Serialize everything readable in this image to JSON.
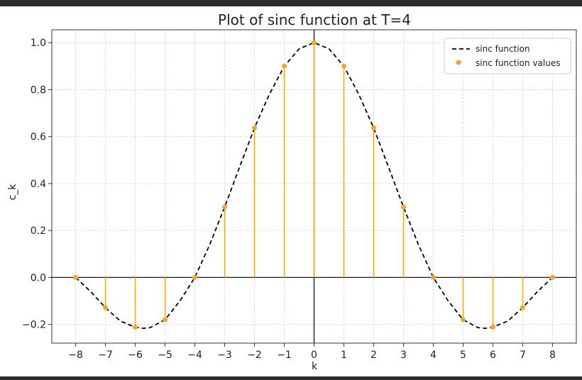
{
  "chart_data": {
    "type": "line",
    "title": "Plot of sinc function at T=4",
    "xlabel": "k",
    "ylabel": "c_k",
    "xlim": [
      -8.8,
      8.8
    ],
    "ylim": [
      -0.28,
      1.055
    ],
    "xticks": [
      -8,
      -7,
      -6,
      -5,
      -4,
      -3,
      -2,
      -1,
      0,
      1,
      2,
      3,
      4,
      5,
      6,
      7,
      8
    ],
    "xtick_labels": [
      "−8",
      "−7",
      "−6",
      "−5",
      "−4",
      "−3",
      "−2",
      "−1",
      "0",
      "1",
      "2",
      "3",
      "4",
      "5",
      "6",
      "7",
      "8"
    ],
    "yticks": [
      -0.2,
      0.0,
      0.2,
      0.4,
      0.6,
      0.8,
      1.0
    ],
    "ytick_labels": [
      "−0.2",
      "0.0",
      "0.2",
      "0.4",
      "0.6",
      "0.8",
      "1.0"
    ],
    "grid": true,
    "legend_position": "top-right",
    "series": [
      {
        "name": "sinc function",
        "kind": "line",
        "style": "dashed",
        "color": "#000000",
        "x": [
          -8.0,
          -7.5,
          -7.0,
          -6.5,
          -6.0,
          -5.75,
          -5.5,
          -5.0,
          -4.5,
          -4.0,
          -3.5,
          -3.0,
          -2.5,
          -2.0,
          -1.5,
          -1.0,
          -0.5,
          0.0,
          0.5,
          1.0,
          1.5,
          2.0,
          2.5,
          3.0,
          3.5,
          4.0,
          4.5,
          5.0,
          5.5,
          5.75,
          6.0,
          6.5,
          7.0,
          7.5,
          8.0
        ],
        "y": [
          0.0,
          -0.06,
          -0.129,
          -0.186,
          -0.212,
          -0.217,
          -0.214,
          -0.18,
          -0.1,
          0.0,
          0.14,
          0.3,
          0.47,
          0.637,
          0.78,
          0.9,
          0.974,
          1.0,
          0.974,
          0.9,
          0.78,
          0.637,
          0.47,
          0.3,
          0.14,
          0.0,
          -0.1,
          -0.18,
          -0.214,
          -0.217,
          -0.212,
          -0.186,
          -0.129,
          -0.06,
          0.0
        ]
      },
      {
        "name": "sinc function values",
        "kind": "stem",
        "color": "#f5a623",
        "x": [
          -8,
          -7,
          -6,
          -5,
          -4,
          -3,
          -2,
          -1,
          0,
          1,
          2,
          3,
          4,
          5,
          6,
          7,
          8
        ],
        "y": [
          0.0,
          -0.129,
          -0.212,
          -0.18,
          0.0,
          0.3,
          0.637,
          0.9,
          1.0,
          0.9,
          0.637,
          0.3,
          0.0,
          -0.18,
          -0.212,
          -0.129,
          0.0
        ]
      }
    ]
  }
}
